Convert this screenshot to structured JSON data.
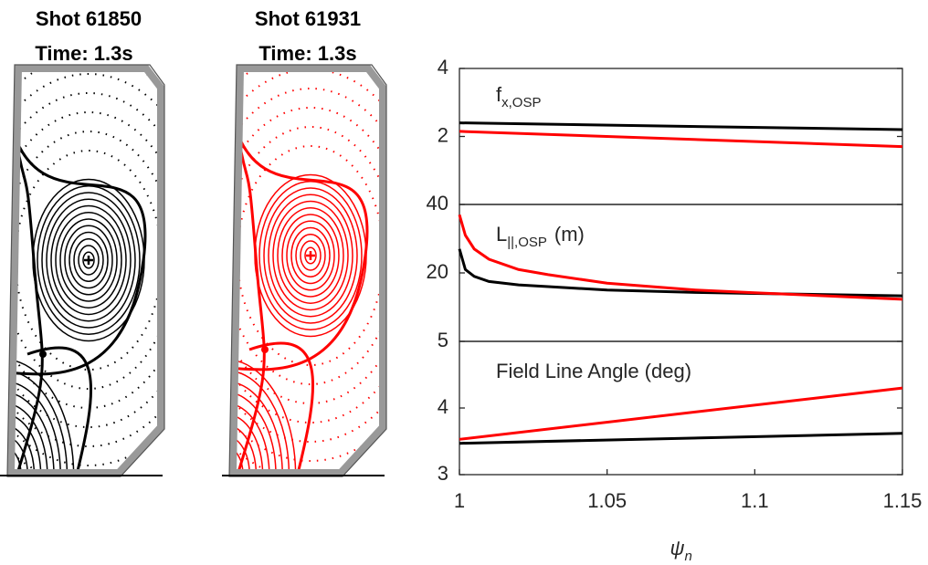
{
  "equilibria": [
    {
      "title": "Shot 61850",
      "subtitle": "Time: 1.3s"
    },
    {
      "title": "Shot 61931",
      "subtitle": "Time: 1.3s"
    }
  ],
  "chart_data": [
    {
      "type": "line",
      "annotation": {
        "text": "f",
        "subscript": "x,OSP"
      },
      "x": [
        1,
        1.15
      ],
      "xlim": [
        1,
        1.15
      ],
      "ylim": [
        0,
        4
      ],
      "yticks": [
        2,
        4
      ],
      "series": [
        {
          "color": "#000000",
          "values": [
            2.4,
            2.2
          ]
        },
        {
          "color": "#ff0000",
          "values": [
            2.15,
            1.7
          ]
        }
      ]
    },
    {
      "type": "line",
      "annotation": {
        "text": "L",
        "subscript": "||,OSP",
        "suffix": "(m)"
      },
      "x": [
        1,
        1.002,
        1.005,
        1.01,
        1.02,
        1.03,
        1.05,
        1.08,
        1.1,
        1.15
      ],
      "xlim": [
        1,
        1.15
      ],
      "ylim": [
        0,
        40
      ],
      "yticks": [
        20,
        40
      ],
      "series": [
        {
          "color": "#000000",
          "values": [
            27,
            21,
            19,
            17.5,
            16.5,
            16,
            15,
            14.3,
            14,
            13.3
          ]
        },
        {
          "color": "#ff0000",
          "values": [
            37,
            31,
            27,
            24,
            21,
            19.5,
            17,
            15,
            14.2,
            12.3
          ]
        }
      ]
    },
    {
      "type": "line",
      "annotation": {
        "text": "Field Line Angle (deg)"
      },
      "x": [
        1,
        1.15
      ],
      "xlim": [
        1,
        1.15
      ],
      "ylim": [
        3,
        5
      ],
      "yticks": [
        3,
        4,
        5
      ],
      "xticks": [
        1,
        1.05,
        1.1,
        1.15
      ],
      "xlabel": {
        "text": "ψ",
        "subscript": "n"
      },
      "series": [
        {
          "color": "#000000",
          "values": [
            3.47,
            3.62
          ]
        },
        {
          "color": "#ff0000",
          "values": [
            3.53,
            4.3
          ]
        }
      ]
    }
  ]
}
